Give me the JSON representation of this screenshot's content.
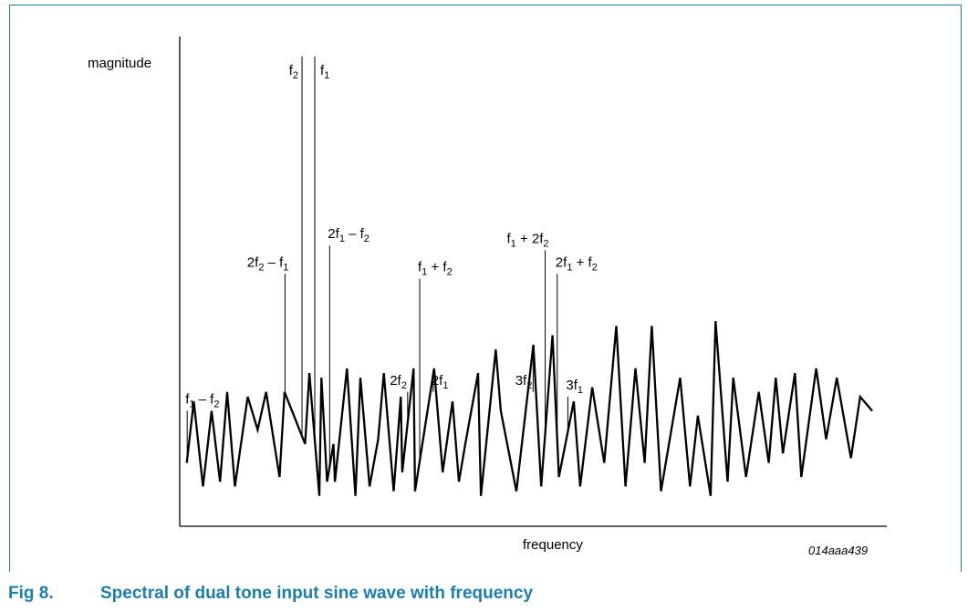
{
  "figure": {
    "number": "Fig 8.",
    "caption": "Spectral of dual tone input sine wave with frequency",
    "code": "014aaa439",
    "accent_color": "#1b7fae"
  },
  "chart_data": {
    "type": "line",
    "title": "",
    "xlabel": "frequency",
    "ylabel": "magnitude",
    "grid": false,
    "legend": "none",
    "axis_ticks": "none",
    "xlim": [
      0,
      100
    ],
    "ylim": [
      0,
      100
    ],
    "series": [
      {
        "x": [
          0.6,
          1.6,
          2.9,
          4.1,
          5.3,
          6.3,
          7.4,
          9.2,
          10.6,
          11.8,
          13.7,
          14.4,
          17.3,
          17.9,
          19.3,
          19.6,
          20.4,
          21.3,
          21.5,
          23.2,
          24.4,
          25.1,
          26.4,
          27.6,
          28.4,
          29.8,
          30.8,
          31.0,
          32.6,
          32.8,
          35.5,
          36.7,
          38.1,
          39.0,
          39.9,
          41.7,
          42.1,
          44.2,
          44.9,
          47.1,
          49.5,
          50.6,
          52.2,
          53.1,
          55.2,
          56.1,
          57.8,
          59.5,
          61.2,
          62.5,
          63.9,
          65.2,
          66.2,
          67.5,
          70.2,
          71.6,
          72.7,
          74.5,
          75.2,
          76.9,
          77.7,
          79.5,
          81.3,
          82.7,
          83.7,
          84.7,
          86.4,
          87.3,
          89.4,
          90.8,
          92.3,
          94.3,
          95.6,
          97.3
        ],
        "y": [
          14,
          27,
          9,
          25,
          10,
          29,
          9,
          28,
          21,
          29,
          11,
          29,
          18,
          33,
          7,
          32,
          10,
          18,
          10,
          34,
          7,
          32,
          9,
          19,
          33,
          8,
          28,
          12,
          34,
          8,
          34,
          12,
          27,
          10,
          18,
          33,
          7,
          38,
          25,
          8,
          39,
          9,
          41,
          11,
          27,
          9,
          30,
          14,
          43,
          9,
          34,
          14,
          43,
          8,
          32,
          9,
          24,
          7,
          44,
          10,
          32,
          11,
          29,
          14,
          32,
          16,
          33,
          11,
          34,
          19,
          32,
          15,
          28,
          25
        ]
      }
    ],
    "annotations": [
      {
        "base": "f",
        "sub": "1",
        "text": " – f",
        "sub2": "2",
        "x": 0.6,
        "y": 25
      },
      {
        "base": "2f",
        "sub": "2",
        "text": " – f",
        "sub2": "1",
        "x": 14.4,
        "y": 54
      },
      {
        "base": "f",
        "sub": "2",
        "text": "",
        "sub2": "",
        "x": 16.8,
        "y": 100
      },
      {
        "base": "f",
        "sub": "1",
        "text": "",
        "sub2": "",
        "x": 18.6,
        "y": 100
      },
      {
        "base": "2f",
        "sub": "1",
        "text": " – f",
        "sub2": "2",
        "x": 20.7,
        "y": 60
      },
      {
        "base": "2f",
        "sub": "2",
        "text": "",
        "sub2": "",
        "x": 31.7,
        "y": 29
      },
      {
        "base": "f",
        "sub": "1",
        "text": " + f",
        "sub2": "2",
        "x": 33.4,
        "y": 53
      },
      {
        "base": "2f",
        "sub": "1",
        "text": "",
        "sub2": "",
        "x": 35.3,
        "y": 29
      },
      {
        "base": "3f",
        "sub": "2",
        "text": "",
        "sub2": "",
        "x": 49.4,
        "y": 29
      },
      {
        "base": "f",
        "sub": "1",
        "text": " + 2f",
        "sub2": "2",
        "x": 51.1,
        "y": 59
      },
      {
        "base": "2f",
        "sub": "1",
        "text": " + f",
        "sub2": "2",
        "x": 52.8,
        "y": 54
      },
      {
        "base": "3f",
        "sub": "1",
        "text": "",
        "sub2": "",
        "x": 54.3,
        "y": 28
      }
    ]
  }
}
